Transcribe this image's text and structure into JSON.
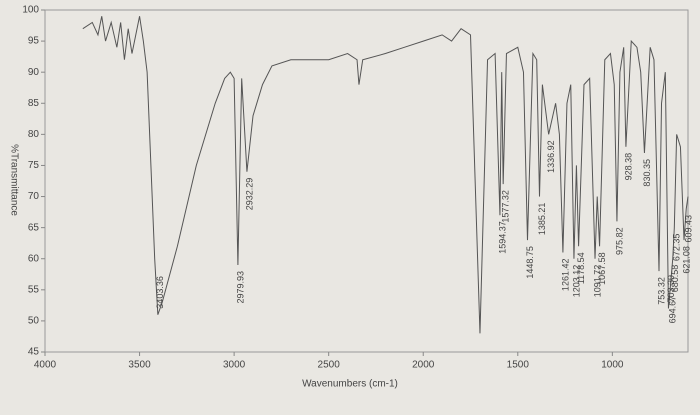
{
  "chart_data": {
    "type": "line",
    "xlabel": "Wavenumbers (cm-1)",
    "ylabel": "%Transmittance",
    "xlim": [
      4000,
      600
    ],
    "xticks": [
      4000,
      3500,
      3000,
      2500,
      2000,
      1500,
      1000
    ],
    "ylim": [
      45,
      100
    ],
    "yticks": [
      45,
      50,
      55,
      60,
      65,
      70,
      75,
      80,
      85,
      90,
      95,
      100
    ],
    "color": "#555555",
    "x": [
      3800,
      3750,
      3720,
      3700,
      3680,
      3650,
      3620,
      3600,
      3580,
      3560,
      3540,
      3520,
      3500,
      3480,
      3460,
      3440,
      3420,
      3403.36,
      3380,
      3300,
      3200,
      3100,
      3050,
      3020,
      3000,
      2979.93,
      2960,
      2932.29,
      2900,
      2850,
      2800,
      2700,
      2600,
      2500,
      2400,
      2350,
      2340,
      2320,
      2200,
      2100,
      2000,
      1900,
      1850,
      1800,
      1750,
      1700,
      1660,
      1620,
      1594.37,
      1585,
      1577.32,
      1560,
      1500,
      1470,
      1448.75,
      1420,
      1400,
      1385.21,
      1370,
      1336.92,
      1300,
      1280,
      1261.42,
      1240,
      1220,
      1203.12,
      1190,
      1178.54,
      1150,
      1120,
      1091.72,
      1080,
      1067.58,
      1040,
      1010,
      990,
      975.82,
      960,
      940,
      928.38,
      900,
      870,
      850,
      830.35,
      800,
      780,
      753.32,
      740,
      720,
      703.39,
      694.67,
      680.58,
      672.35,
      660,
      640,
      621.08,
      609.43,
      600
    ],
    "values": [
      97,
      98,
      96,
      99,
      95,
      98,
      94,
      98,
      92,
      97,
      93,
      96,
      99,
      95,
      90,
      75,
      60,
      51,
      53,
      62,
      75,
      85,
      89,
      90,
      89,
      59,
      89,
      74,
      83,
      88,
      91,
      92,
      92,
      92,
      93,
      92,
      88,
      92,
      93,
      94,
      95,
      96,
      95,
      97,
      96,
      48,
      92,
      93,
      67,
      90,
      72,
      93,
      94,
      90,
      63,
      93,
      92,
      70,
      88,
      80,
      85,
      80,
      61,
      85,
      88,
      60,
      75,
      62,
      88,
      89,
      60,
      70,
      62,
      92,
      93,
      88,
      66,
      90,
      94,
      78,
      95,
      94,
      90,
      77,
      94,
      92,
      58,
      85,
      90,
      52,
      55,
      60,
      65,
      80,
      78,
      63,
      68,
      70
    ],
    "peak_labels": [
      3403.36,
      2979.93,
      2932.29,
      1594.37,
      1577.32,
      1448.75,
      1385.21,
      1336.92,
      1261.42,
      1203.12,
      1178.54,
      1091.72,
      1067.58,
      975.82,
      928.38,
      830.35,
      753.32,
      703.39,
      694.67,
      680.58,
      672.35,
      621.08,
      609.43
    ]
  }
}
